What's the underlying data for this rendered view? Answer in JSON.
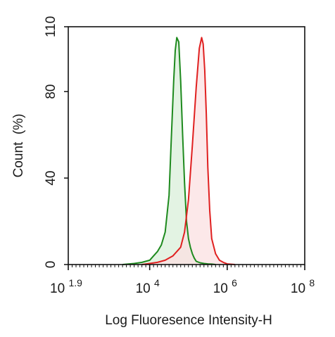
{
  "chart_data": {
    "type": "area",
    "title": "",
    "xlabel": "Log Fluoresence Intensity-H",
    "ylabel": "Count  (%)",
    "xscale": "log10",
    "xlim": [
      1.9,
      8
    ],
    "ylim": [
      0,
      110
    ],
    "grid": false,
    "legend": "none",
    "x_ticks": [
      {
        "base": "10",
        "exp": "1.9",
        "value": 1.9
      },
      {
        "base": "10",
        "exp": "4",
        "value": 4
      },
      {
        "base": "10",
        "exp": "6",
        "value": 6
      },
      {
        "base": "10",
        "exp": "8",
        "value": 8
      }
    ],
    "y_ticks": [
      "0",
      "40",
      "80",
      "110"
    ],
    "series": [
      {
        "color": "#1e8a1e",
        "fill": "#d9efd9",
        "x": [
          3.3,
          3.6,
          3.8,
          4.0,
          4.1,
          4.2,
          4.3,
          4.4,
          4.5,
          4.55,
          4.62,
          4.66,
          4.7,
          4.75,
          4.8,
          4.85,
          4.9,
          4.95,
          5.0,
          5.05,
          5.1,
          5.15,
          5.2,
          5.3,
          5.4,
          5.5,
          5.6,
          5.7
        ],
        "y": [
          0,
          0.5,
          1,
          2,
          4,
          6,
          9,
          15,
          32,
          55,
          85,
          99,
          105,
          103,
          85,
          60,
          38,
          20,
          12,
          8,
          5,
          3,
          1.5,
          0.8,
          0.5,
          0.3,
          0.2,
          0
        ]
      },
      {
        "color": "#e02020",
        "fill": "#fbe0e2",
        "x": [
          3.8,
          4.0,
          4.2,
          4.3,
          4.4,
          4.5,
          4.6,
          4.7,
          4.8,
          4.9,
          5.0,
          5.1,
          5.2,
          5.28,
          5.34,
          5.38,
          5.42,
          5.46,
          5.5,
          5.55,
          5.6,
          5.7,
          5.8,
          5.9,
          6.0,
          6.2
        ],
        "y": [
          0,
          0.5,
          1,
          1.5,
          2,
          3,
          4,
          6,
          8,
          15,
          30,
          55,
          82,
          100,
          105,
          102,
          90,
          70,
          45,
          25,
          12,
          5,
          2,
          1,
          0.3,
          0
        ]
      }
    ]
  }
}
